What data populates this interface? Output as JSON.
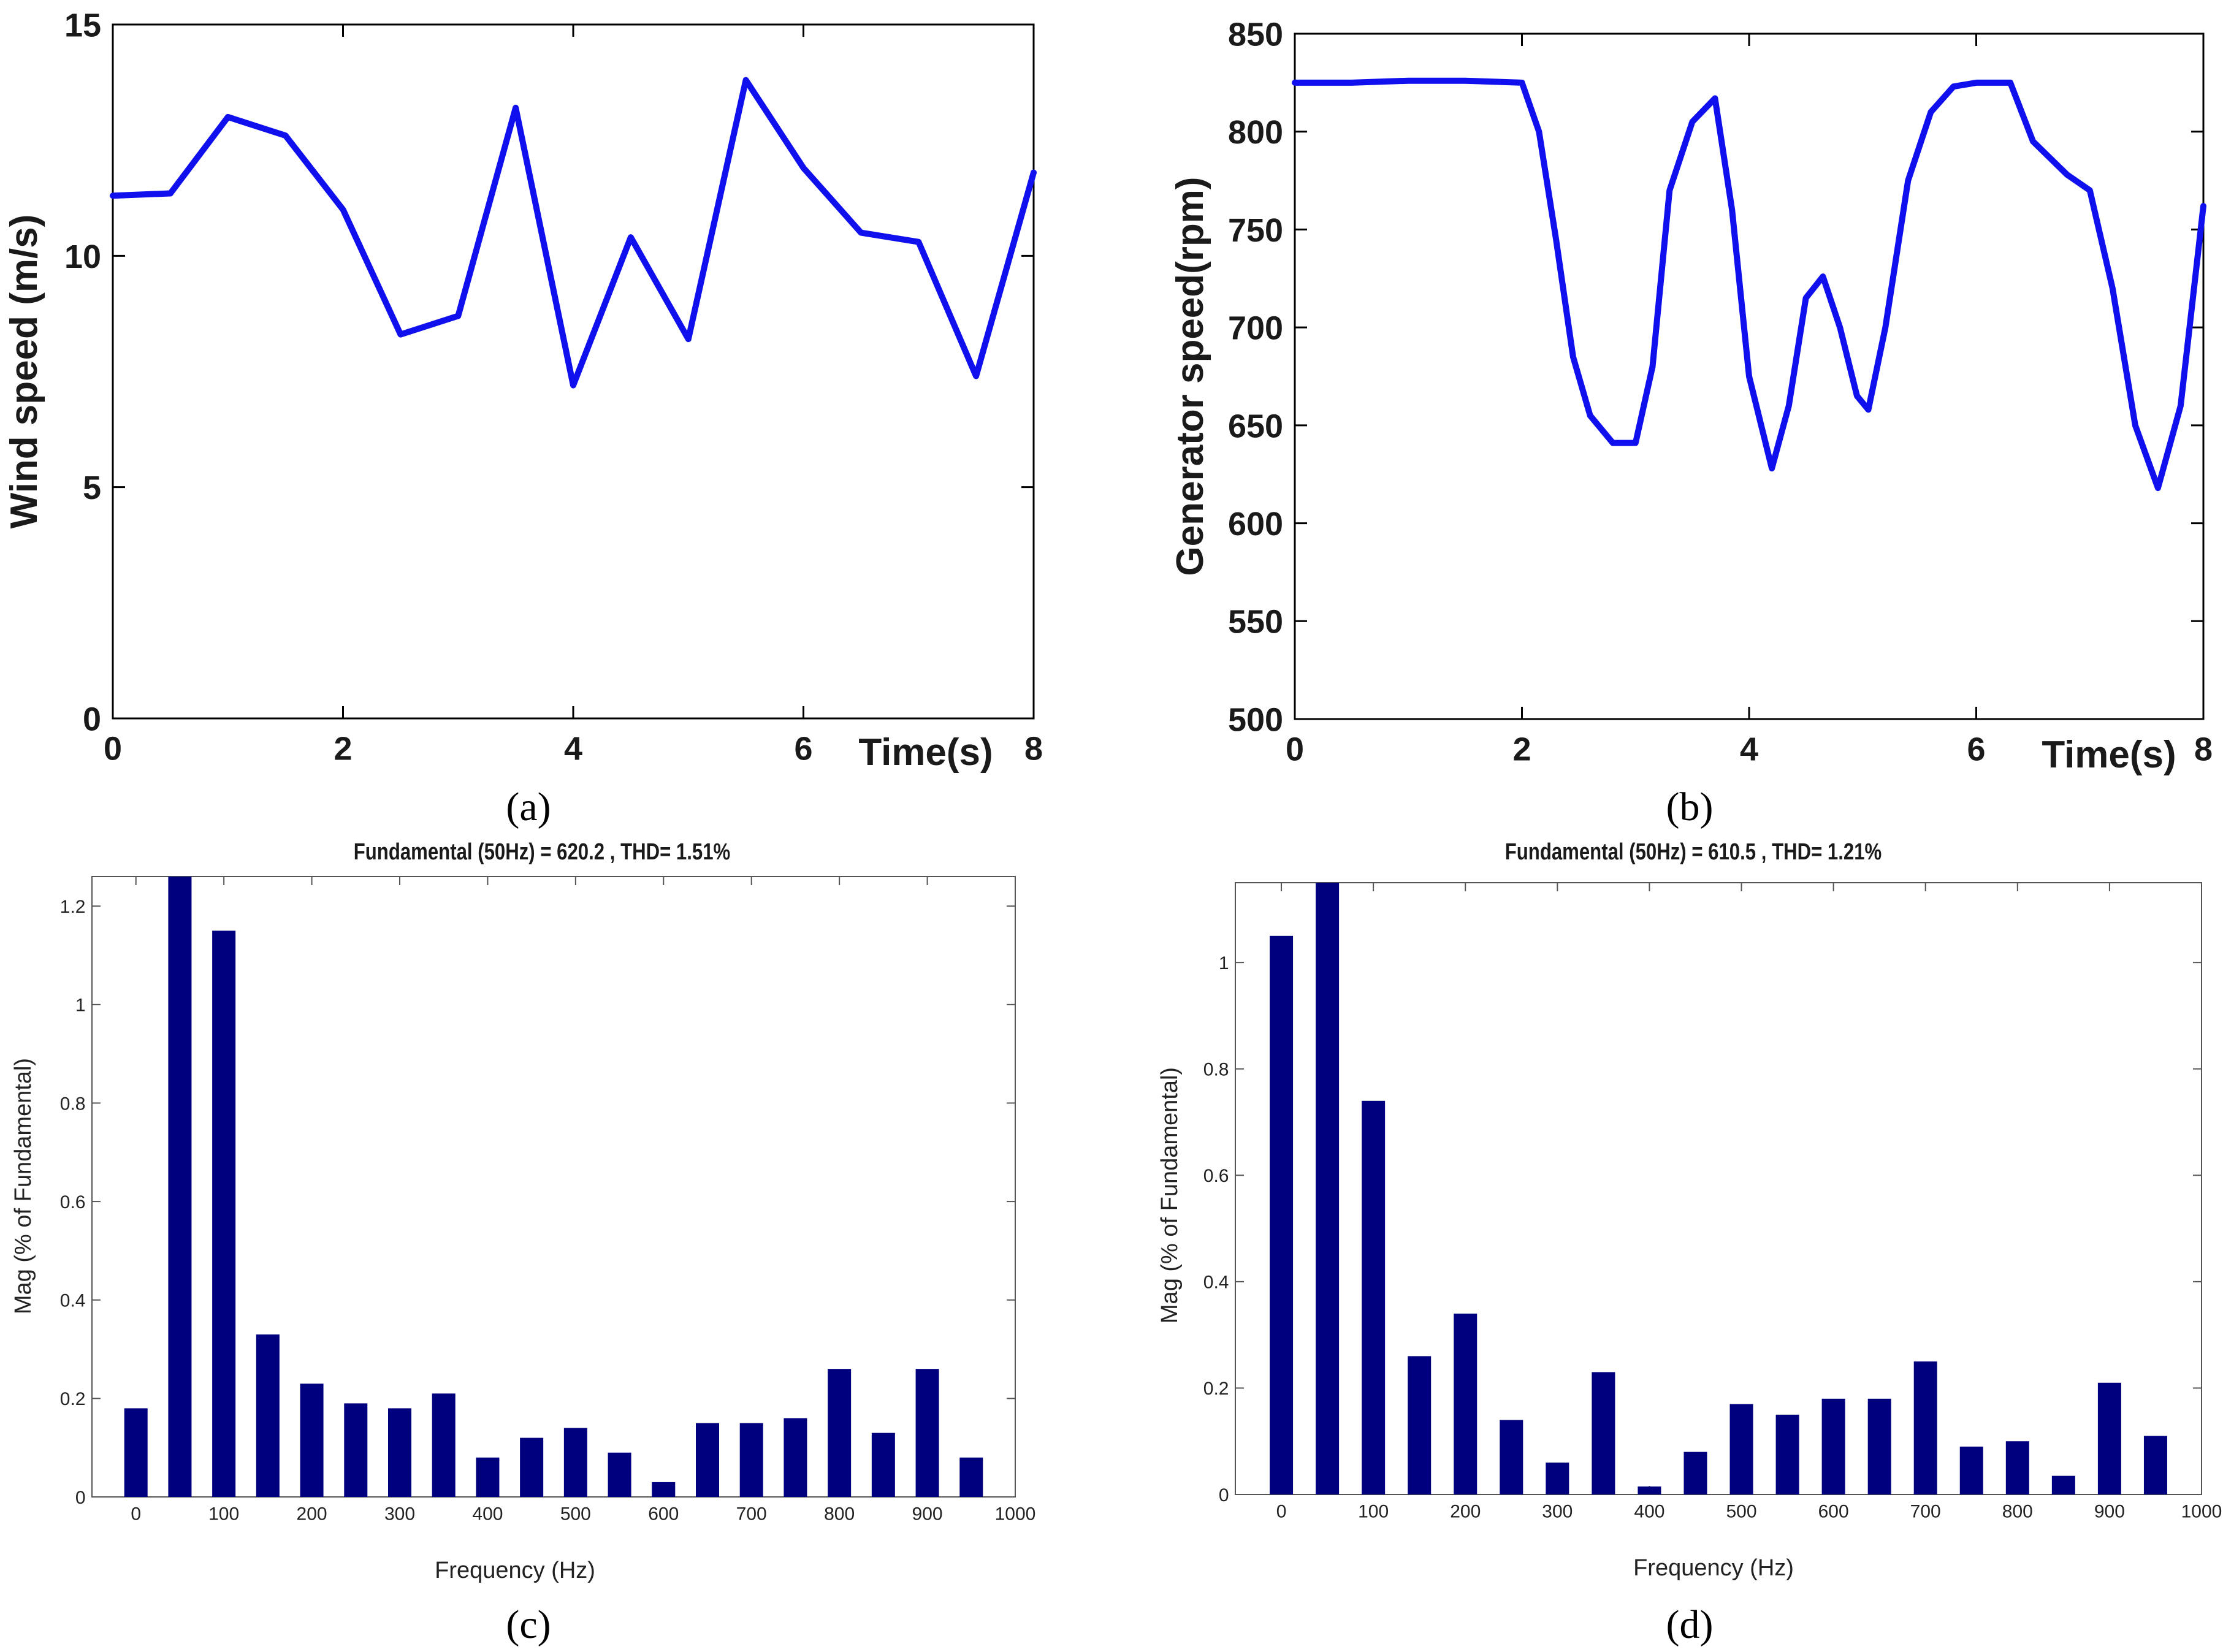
{
  "colors": {
    "line": "#1010ee",
    "bar": "#00007f",
    "frame": "#000000"
  },
  "chart_data": [
    {
      "id": "a",
      "type": "line",
      "caption": "(a)",
      "title": "",
      "xlabel": "Time(s)",
      "ylabel": "Wind speed (m/s)",
      "xlim": [
        0,
        8
      ],
      "ylim": [
        0,
        15
      ],
      "xticks": [
        0,
        2,
        4,
        6,
        8
      ],
      "yticks": [
        0,
        5,
        10,
        15
      ],
      "x": [
        0,
        0.5,
        1,
        1.5,
        2,
        2.5,
        3,
        3.5,
        4,
        4.5,
        5,
        5.5,
        6,
        6.5,
        7,
        7.5,
        8
      ],
      "values": [
        11.3,
        11.35,
        13.0,
        12.6,
        11.0,
        8.3,
        8.7,
        13.2,
        7.2,
        10.4,
        8.2,
        13.8,
        11.9,
        10.5,
        10.3,
        7.4,
        11.8
      ]
    },
    {
      "id": "b",
      "type": "line",
      "caption": "(b)",
      "title": "",
      "xlabel": "Time(s)",
      "ylabel": "Generator speed(rpm)",
      "xlim": [
        0,
        8
      ],
      "ylim": [
        500,
        850
      ],
      "xticks": [
        0,
        2,
        4,
        6,
        8
      ],
      "yticks": [
        500,
        550,
        600,
        650,
        700,
        750,
        800,
        850
      ],
      "x": [
        0,
        0.5,
        1.0,
        1.5,
        2.0,
        2.15,
        2.3,
        2.45,
        2.6,
        2.8,
        3.0,
        3.15,
        3.3,
        3.5,
        3.7,
        3.85,
        4.0,
        4.2,
        4.35,
        4.5,
        4.65,
        4.8,
        4.95,
        5.05,
        5.2,
        5.4,
        5.6,
        5.8,
        6.0,
        6.3,
        6.5,
        6.8,
        7.0,
        7.2,
        7.4,
        7.6,
        7.8,
        8.0
      ],
      "values": [
        825,
        825,
        826,
        826,
        825,
        800,
        745,
        685,
        655,
        641,
        641,
        680,
        770,
        805,
        817,
        760,
        675,
        628,
        660,
        715,
        726,
        700,
        665,
        658,
        700,
        775,
        810,
        823,
        825,
        825,
        795,
        778,
        770,
        720,
        650,
        618,
        660,
        762
      ]
    },
    {
      "id": "c",
      "type": "bar",
      "caption": "(c)",
      "title": "Fundamental (50Hz) = 620.2 , THD= 1.51%",
      "xlabel": "Frequency (Hz)",
      "ylabel": "Mag (% of Fundamental)",
      "xlim": [
        -50,
        1000
      ],
      "ylim": [
        0,
        1.26
      ],
      "xticks": [
        0,
        100,
        200,
        300,
        400,
        500,
        600,
        700,
        800,
        900,
        1000
      ],
      "yticks": [
        0,
        0.2,
        0.4,
        0.6,
        0.8,
        1,
        1.2
      ],
      "x": [
        0,
        50,
        100,
        150,
        200,
        250,
        300,
        350,
        400,
        450,
        500,
        550,
        600,
        650,
        700,
        750,
        800,
        850,
        900,
        950
      ],
      "values": [
        0.18,
        1.26,
        1.15,
        0.33,
        0.23,
        0.19,
        0.18,
        0.21,
        0.08,
        0.12,
        0.14,
        0.09,
        0.03,
        0.15,
        0.15,
        0.16,
        0.26,
        0.13,
        0.26,
        0.08
      ]
    },
    {
      "id": "d",
      "type": "bar",
      "caption": "(d)",
      "title": "Fundamental (50Hz) = 610.5 , THD= 1.21%",
      "xlabel": "Frequency (Hz)",
      "ylabel": "Mag (% of Fundamental)",
      "xlim": [
        -50,
        1000
      ],
      "ylim": [
        0,
        1.15
      ],
      "xticks": [
        0,
        100,
        200,
        300,
        400,
        500,
        600,
        700,
        800,
        900,
        1000
      ],
      "yticks": [
        0,
        0.2,
        0.4,
        0.6,
        0.8,
        1
      ],
      "x": [
        0,
        50,
        100,
        150,
        200,
        250,
        300,
        350,
        400,
        450,
        500,
        550,
        600,
        650,
        700,
        750,
        800,
        850,
        900,
        950
      ],
      "values": [
        1.05,
        1.15,
        0.74,
        0.26,
        0.34,
        0.14,
        0.06,
        0.23,
        0.015,
        0.08,
        0.17,
        0.15,
        0.18,
        0.18,
        0.25,
        0.09,
        0.1,
        0.035,
        0.21,
        0.11
      ]
    }
  ]
}
